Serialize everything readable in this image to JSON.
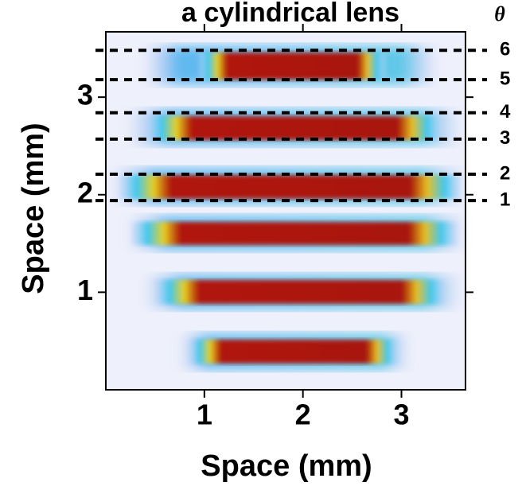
{
  "chart_data": {
    "type": "image",
    "title": "a cylindrical lens",
    "x_label": "Space (mm)",
    "y_label": "Space (mm)",
    "xlim": [
      0,
      3.65
    ],
    "ylim": [
      0,
      3.67
    ],
    "xticks": [
      1,
      2,
      3
    ],
    "yticks": [
      1,
      2,
      3
    ],
    "annotation_title": "θ",
    "annotations": [
      {
        "value": 3.48,
        "label": "6"
      },
      {
        "value": 3.18,
        "label": "5"
      },
      {
        "value": 2.84,
        "label": "4"
      },
      {
        "value": 2.57,
        "label": "3"
      },
      {
        "value": 2.21,
        "label": "2"
      },
      {
        "value": 1.94,
        "label": "1"
      }
    ]
  }
}
